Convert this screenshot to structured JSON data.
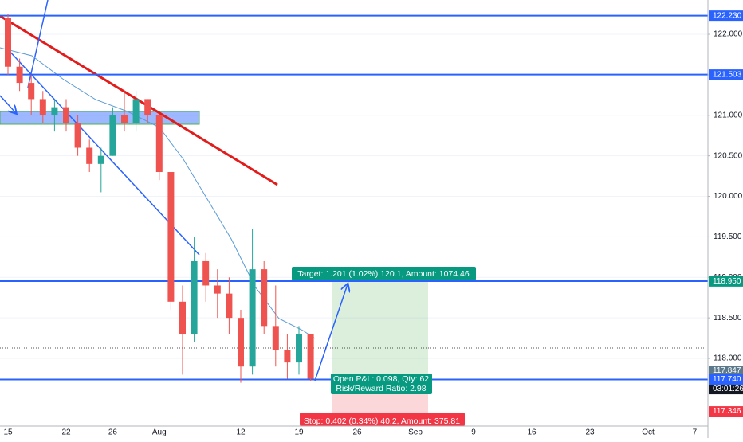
{
  "chart_data": {
    "type": "candlestick",
    "categories": [
      "15",
      null,
      null,
      null,
      null,
      "22",
      null,
      null,
      null,
      "26",
      null,
      null,
      null,
      "Aug",
      null,
      null,
      null,
      null,
      null,
      null,
      "12",
      null,
      null,
      null,
      null,
      "19",
      null,
      null,
      null,
      null,
      "26",
      null,
      null,
      null,
      null,
      "Sep",
      null,
      null,
      null,
      null,
      "9",
      null,
      null,
      null,
      null,
      "16",
      null,
      null,
      null,
      null,
      "23",
      null,
      null,
      null,
      null,
      "Oct",
      null,
      null,
      null,
      "7",
      null
    ],
    "open": [
      122.2,
      121.6,
      121.4,
      121.2,
      121.0,
      121.1,
      120.9,
      120.6,
      120.4,
      120.5,
      121.0,
      120.9,
      121.2,
      121.0,
      120.3,
      118.7,
      118.3,
      119.2,
      118.9,
      118.8,
      118.5,
      117.9,
      119.1,
      118.4,
      118.1,
      117.95,
      118.3,
      null,
      null,
      null,
      null,
      null,
      null,
      null,
      null,
      null,
      null,
      null,
      null,
      null,
      null,
      null,
      null,
      null,
      null,
      null,
      null,
      null,
      null,
      null,
      null,
      null,
      null,
      null,
      null,
      null,
      null,
      null,
      null,
      null,
      null
    ],
    "high": [
      122.25,
      121.7,
      121.5,
      121.3,
      121.2,
      121.2,
      121.0,
      120.7,
      120.6,
      121.1,
      121.3,
      121.3,
      121.2,
      121.0,
      120.3,
      118.9,
      119.5,
      119.3,
      119.1,
      119.0,
      118.6,
      119.6,
      119.2,
      118.9,
      118.3,
      118.4,
      118.3,
      null,
      null,
      null,
      null,
      null,
      null,
      null,
      null,
      null,
      null,
      null,
      null,
      null,
      null,
      null,
      null,
      null,
      null,
      null,
      null,
      null,
      null,
      null,
      null,
      null,
      null,
      null,
      null,
      null,
      null,
      null,
      null,
      null,
      null
    ],
    "low": [
      121.5,
      121.3,
      121.0,
      120.9,
      120.8,
      120.8,
      120.5,
      120.3,
      120.05,
      120.5,
      120.8,
      120.8,
      120.9,
      120.2,
      118.6,
      117.8,
      118.2,
      118.7,
      118.5,
      118.3,
      117.7,
      117.8,
      118.3,
      117.9,
      117.75,
      117.8,
      117.72,
      null,
      null,
      null,
      null,
      null,
      null,
      null,
      null,
      null,
      null,
      null,
      null,
      null,
      null,
      null,
      null,
      null,
      null,
      null,
      null,
      null,
      null,
      null,
      null,
      null,
      null,
      null,
      null,
      null,
      null,
      null,
      null,
      null,
      null
    ],
    "close": [
      121.6,
      121.4,
      121.2,
      121.0,
      121.1,
      120.9,
      120.6,
      120.4,
      120.5,
      121.0,
      120.9,
      121.2,
      121.0,
      120.3,
      118.7,
      118.3,
      119.2,
      118.9,
      118.8,
      118.5,
      117.9,
      119.1,
      118.4,
      118.1,
      117.95,
      118.3,
      117.749,
      null,
      null,
      null,
      null,
      null,
      null,
      null,
      null,
      null,
      null,
      null,
      null,
      null,
      null,
      null,
      null,
      null,
      null,
      null,
      null,
      null,
      null,
      null,
      null,
      null,
      null,
      null,
      null,
      null,
      null,
      null,
      null,
      null,
      null
    ],
    "up_color": "#26a69a",
    "down_color": "#ef5350",
    "ylim": [
      117.165,
      122.423
    ],
    "yticks": [
      {
        "value": 118.0,
        "label": "118.000"
      },
      {
        "value": 118.5,
        "label": "118.500"
      },
      {
        "value": 119.0,
        "label": "119.000"
      },
      {
        "value": 119.5,
        "label": "119.500"
      },
      {
        "value": 120.0,
        "label": "120.000"
      },
      {
        "value": 120.5,
        "label": "120.500"
      },
      {
        "value": 121.0,
        "label": "121.000"
      },
      {
        "value": 121.5,
        "label": "121.500"
      },
      {
        "value": 122.0,
        "label": "122.000"
      }
    ],
    "grid": true,
    "price_levels": [
      {
        "value": 122.23,
        "label": "122.230",
        "color": "#2962ff",
        "line": true
      },
      {
        "value": 121.503,
        "label": "121.503",
        "color": "#2962ff",
        "line": true
      },
      {
        "value": 118.954,
        "label": "118.954",
        "color": "#2962ff",
        "line": true
      },
      {
        "value": 118.95,
        "label": "118.950",
        "color": "#089981",
        "line": false
      },
      {
        "value": 117.847,
        "label": "117.847",
        "color": "#5d7a8c",
        "line": false
      },
      {
        "value": 117.749,
        "label": "117.749",
        "color": "#131722",
        "line": false
      },
      {
        "value": 117.74,
        "label": "117.740",
        "color": "#2962ff",
        "line": true
      },
      {
        "value": 117.346,
        "label": "117.346",
        "color": "#f23645",
        "line": false
      }
    ],
    "countdown": "03:01:26"
  },
  "position": {
    "target": "Target: 1.201 (1.02%) 120.1, Amount: 1074.46",
    "open_pl": "Open P&L: 0.098, Qty: 62",
    "risk_reward": "Risk/Reward Ratio: 2.98",
    "stop": "Stop: 0.402 (0.34%) 40.2, Amount: 375.81"
  }
}
